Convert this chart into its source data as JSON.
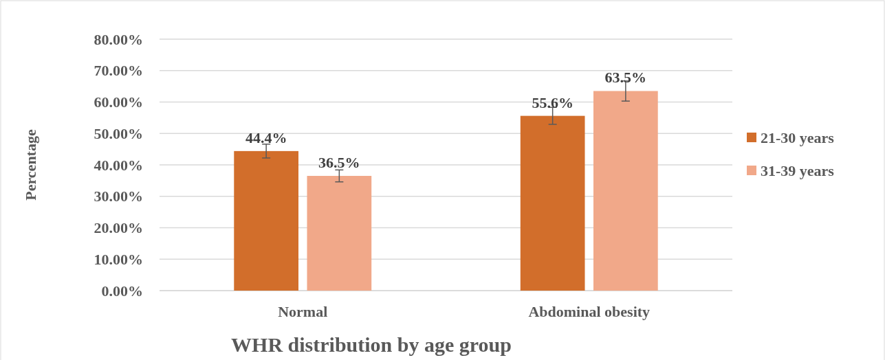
{
  "chart_data": {
    "type": "bar",
    "title": "WHR distribution by age group",
    "ylabel": "Percentage",
    "categories": [
      "Normal",
      "Abdominal obesity"
    ],
    "series": [
      {
        "name": "21-30 years",
        "color": "#d26e2b",
        "values": [
          44.4,
          55.6
        ],
        "errors": [
          2.2,
          2.7
        ],
        "value_labels": [
          "44.4%",
          "55.6%"
        ]
      },
      {
        "name": "31-39 years",
        "color": "#f1a889",
        "values": [
          36.5,
          63.5
        ],
        "errors": [
          1.9,
          3.2
        ],
        "value_labels": [
          "36.5%",
          "63.5%"
        ]
      }
    ],
    "ylim": [
      0,
      80
    ],
    "yticks": [
      {
        "value": 0,
        "label": "0.00%"
      },
      {
        "value": 10,
        "label": "10.00%"
      },
      {
        "value": 20,
        "label": "20.00%"
      },
      {
        "value": 30,
        "label": "30.00%"
      },
      {
        "value": 40,
        "label": "40.00%"
      },
      {
        "value": 50,
        "label": "50.00%"
      },
      {
        "value": 60,
        "label": "60.00%"
      },
      {
        "value": 70,
        "label": "70.00%"
      },
      {
        "value": 80,
        "label": "80.00%"
      }
    ],
    "grid": "y",
    "legend": "right"
  }
}
